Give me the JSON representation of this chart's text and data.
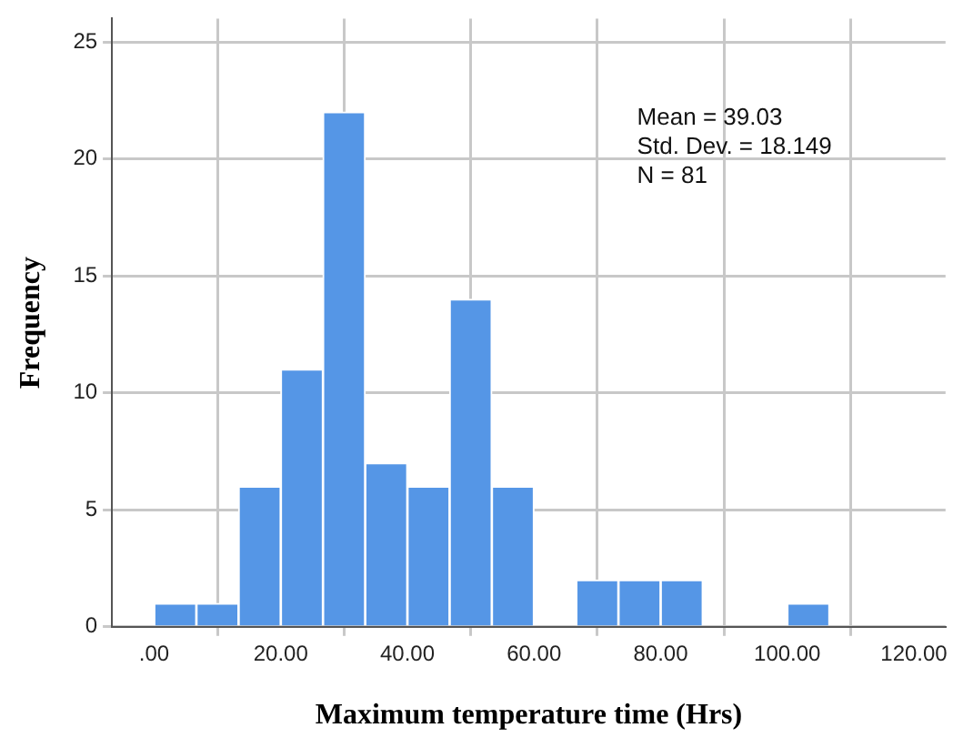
{
  "chart_data": {
    "type": "histogram",
    "xlabel": "Maximum temperature time (Hrs)",
    "ylabel": "Frequency",
    "bins": [
      0,
      6.67,
      13.33,
      20,
      26.67,
      33.33,
      40,
      46.67,
      53.33,
      60,
      66.67,
      73.33,
      80,
      86.67,
      93.33,
      100,
      106.67
    ],
    "values": [
      1,
      1,
      6,
      11,
      22,
      7,
      6,
      14,
      6,
      0,
      2,
      2,
      2,
      0,
      0,
      1
    ],
    "color": "#5596e6",
    "xlim": [
      -6.67,
      125
    ],
    "xticks": [
      {
        "value": 0,
        "label": ".00"
      },
      {
        "value": 20,
        "label": "20.00"
      },
      {
        "value": 40,
        "label": "40.00"
      },
      {
        "value": 60,
        "label": "60.00"
      },
      {
        "value": 80,
        "label": "80.00"
      },
      {
        "value": 100,
        "label": "100.00"
      },
      {
        "value": 120,
        "label": "120.00"
      }
    ],
    "ylim": [
      0,
      26
    ],
    "yticks": [
      0,
      5,
      10,
      15,
      20,
      25
    ],
    "grid": true,
    "annotations": [
      "Mean = 39.03",
      "Std. Dev. = 18.149",
      "N = 81"
    ]
  }
}
